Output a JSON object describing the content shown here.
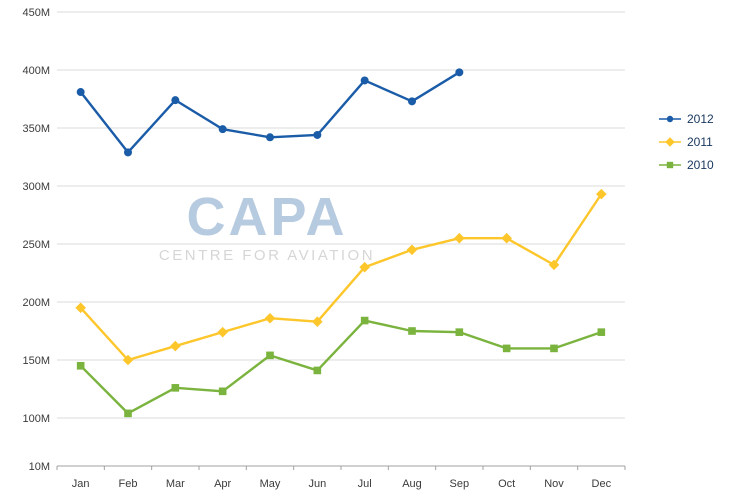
{
  "chart_data": {
    "type": "line",
    "title": "",
    "xlabel": "",
    "ylabel": "",
    "ylim": [
      10,
      450
    ],
    "grid": true,
    "legend_position": "right",
    "categories": [
      "Jan",
      "Feb",
      "Mar",
      "Apr",
      "May",
      "Jun",
      "Jul",
      "Aug",
      "Sep",
      "Oct",
      "Nov",
      "Dec"
    ],
    "y_axis": {
      "ticks": [
        {
          "label": "450M",
          "value": 450
        },
        {
          "label": "400M",
          "value": 400
        },
        {
          "label": "350M",
          "value": 350
        },
        {
          "label": "300M",
          "value": 300
        },
        {
          "label": "250M",
          "value": 250
        },
        {
          "label": "200M",
          "value": 200
        },
        {
          "label": "150M",
          "value": 150
        },
        {
          "label": "100M",
          "value": 100
        },
        {
          "label": "10M",
          "value": 10,
          "at_axis": true
        }
      ]
    },
    "series": [
      {
        "name": "2012",
        "color": "#1a5ca8",
        "marker": "circle",
        "values": [
          381,
          329,
          374,
          349,
          342,
          344,
          391,
          373,
          398,
          null,
          null,
          null
        ]
      },
      {
        "name": "2011",
        "color": "#fdc62b",
        "marker": "diamond",
        "values": [
          195,
          150,
          162,
          174,
          186,
          183,
          230,
          245,
          255,
          255,
          232,
          293
        ]
      },
      {
        "name": "2010",
        "color": "#7ab33d",
        "marker": "square",
        "values": [
          145,
          104,
          126,
          123,
          154,
          141,
          184,
          175,
          174,
          160,
          160,
          174
        ]
      }
    ]
  },
  "watermark": {
    "title": "CAPA",
    "subtitle": "CENTRE FOR AVIATION"
  },
  "colors": {
    "grid": "#dbdbdb",
    "axis": "#a0a0a0",
    "tick_text": "#3b3b3b"
  }
}
